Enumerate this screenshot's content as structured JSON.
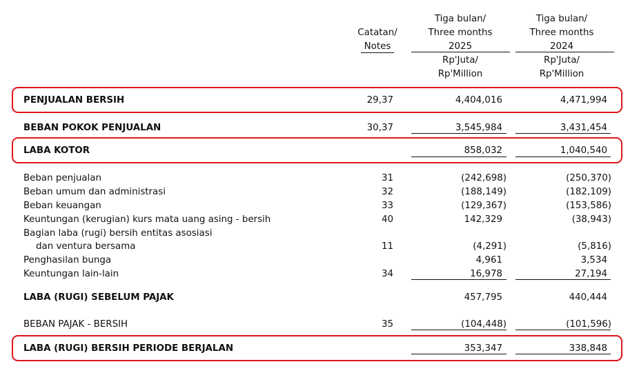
{
  "header": {
    "notes_label": [
      "Catatan/",
      "Notes"
    ],
    "col1": [
      "Tiga bulan/",
      "Three months",
      "2025"
    ],
    "col2": [
      "Tiga bulan/",
      "Three months",
      "2024"
    ],
    "unit1": [
      "Rp'Juta/",
      "Rp'Million"
    ],
    "unit2": [
      "Rp'Juta/",
      "Rp'Million"
    ]
  },
  "rows": [
    {
      "label": "PENJUALAN BERSIH",
      "note": "29,37",
      "v2025": "4,404,016",
      "v2024": "4,471,994"
    },
    {
      "label": "BEBAN POKOK PENJUALAN",
      "note": "30,37",
      "v2025": "3,545,984",
      "v2024": "3,431,454"
    },
    {
      "label": "LABA KOTOR",
      "note": "",
      "v2025": "858,032",
      "v2024": "1,040,540"
    },
    {
      "label": "Beban penjualan",
      "note": "31",
      "v2025": "(242,698)",
      "v2024": "(250,370)"
    },
    {
      "label": "Beban umum dan administrasi",
      "note": "32",
      "v2025": "(188,149)",
      "v2024": "(182,109)"
    },
    {
      "label": "Beban keuangan",
      "note": "33",
      "v2025": "(129,367)",
      "v2024": "(153,586)"
    },
    {
      "label": "Keuntungan (kerugian) kurs mata uang asing - bersih",
      "note": "40",
      "v2025": "142,329",
      "v2024": "(38,943)"
    },
    {
      "label": "Bagian laba (rugi) bersih entitas asosiasi",
      "note": "",
      "v2025": "",
      "v2024": ""
    },
    {
      "label": "dan ventura bersama",
      "note": "11",
      "v2025": "(4,291)",
      "v2024": "(5,816)"
    },
    {
      "label": "Penghasilan bunga",
      "note": "",
      "v2025": "4,961",
      "v2024": "3,534"
    },
    {
      "label": "Keuntungan lain-lain",
      "note": "34",
      "v2025": "16,978",
      "v2024": "27,194"
    },
    {
      "label": "LABA (RUGI) SEBELUM PAJAK",
      "note": "",
      "v2025": "457,795",
      "v2024": "440,444"
    },
    {
      "label": "BEBAN PAJAK - BERSIH",
      "note": "35",
      "v2025": "(104,448)",
      "v2024": "(101,596)"
    },
    {
      "label": "LABA (RUGI) BERSIH PERIODE BERJALAN",
      "note": "",
      "v2025": "353,347",
      "v2024": "338,848"
    }
  ],
  "colors": {
    "highlight": "#e0141b",
    "text": "#111111"
  }
}
